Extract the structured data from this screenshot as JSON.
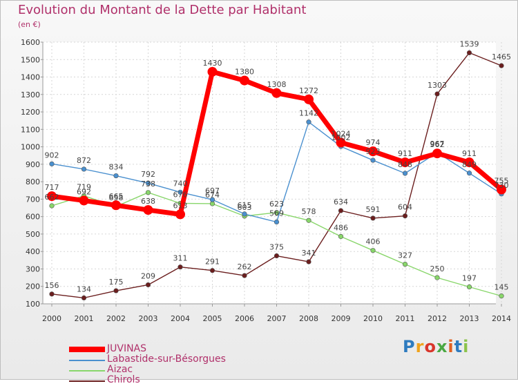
{
  "header": {
    "title": "Evolution du Montant de la Dette par Habitant",
    "unit": "(en €)"
  },
  "logo": {
    "text": "Proxiti",
    "colors": [
      "#2e7bbf",
      "#f0a31c",
      "#d9352b",
      "#4aa842",
      "#e06020",
      "#2e7bbf",
      "#8bc34a"
    ]
  },
  "chart_data": {
    "type": "line",
    "title": "Evolution du Montant de la Dette par Habitant",
    "ylabel": "(en €)",
    "xlabel": "",
    "x": [
      "2000",
      "2001",
      "2002",
      "2003",
      "2004",
      "2005",
      "2006",
      "2007",
      "2008",
      "2009",
      "2010",
      "2011",
      "2012",
      "2013",
      "2014"
    ],
    "ylim": [
      100,
      1600
    ],
    "yticks": [
      100,
      200,
      300,
      400,
      500,
      600,
      700,
      800,
      900,
      1000,
      1100,
      1200,
      1300,
      1400,
      1500,
      1600
    ],
    "grid": true,
    "legend_position": "bottom-left",
    "series": [
      {
        "name": "JUVINAS",
        "color": "#ff0000",
        "values": [
          717,
          692,
          665,
          638,
          613,
          1430,
          1380,
          1308,
          1272,
          1024,
          974,
          911,
          962,
          911,
          755
        ]
      },
      {
        "name": "Labastide-sur-Bésorgues",
        "color": "#4a90cf",
        "values": [
          902,
          872,
          834,
          792,
          740,
          697,
          615,
          569,
          1142,
          1002,
          923,
          848,
          967,
          849,
          730
        ]
      },
      {
        "name": "Aizac",
        "color": "#88d66a",
        "values": [
          662,
          719,
          658,
          738,
          676,
          674,
          603,
          623,
          578,
          486,
          406,
          327,
          250,
          197,
          145
        ]
      },
      {
        "name": "Chirols",
        "color": "#6b1e1e",
        "values": [
          156,
          134,
          175,
          209,
          311,
          291,
          262,
          375,
          341,
          634,
          591,
          604,
          1303,
          1539,
          1465
        ]
      }
    ]
  }
}
